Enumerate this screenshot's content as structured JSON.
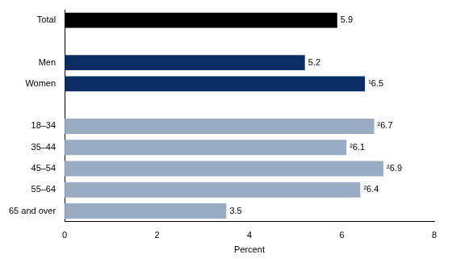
{
  "chart_data": {
    "type": "bar",
    "orientation": "horizontal",
    "categories": [
      "Total",
      null,
      "Men",
      "Women",
      null,
      "18–34",
      "35–44",
      "45–54",
      "55–64",
      "65 and over"
    ],
    "values": [
      5.9,
      null,
      5.2,
      6.5,
      null,
      6.7,
      6.1,
      6.9,
      6.4,
      3.5
    ],
    "value_labels": [
      "5.9",
      null,
      "5.2",
      "¹6.5",
      null,
      "²6.7",
      "²6.1",
      "²6.9",
      "²6.4",
      "3.5"
    ],
    "colors": [
      "#000000",
      null,
      "#0c2d63",
      "#0c2d63",
      null,
      "#9aabc4",
      "#9aabc4",
      "#9aabc4",
      "#9aabc4",
      "#9aabc4"
    ],
    "xlim": [
      0,
      8
    ],
    "xticks": [
      0,
      2,
      4,
      6,
      8
    ],
    "x_label": "Percent",
    "grid": false,
    "data_labels": true
  }
}
